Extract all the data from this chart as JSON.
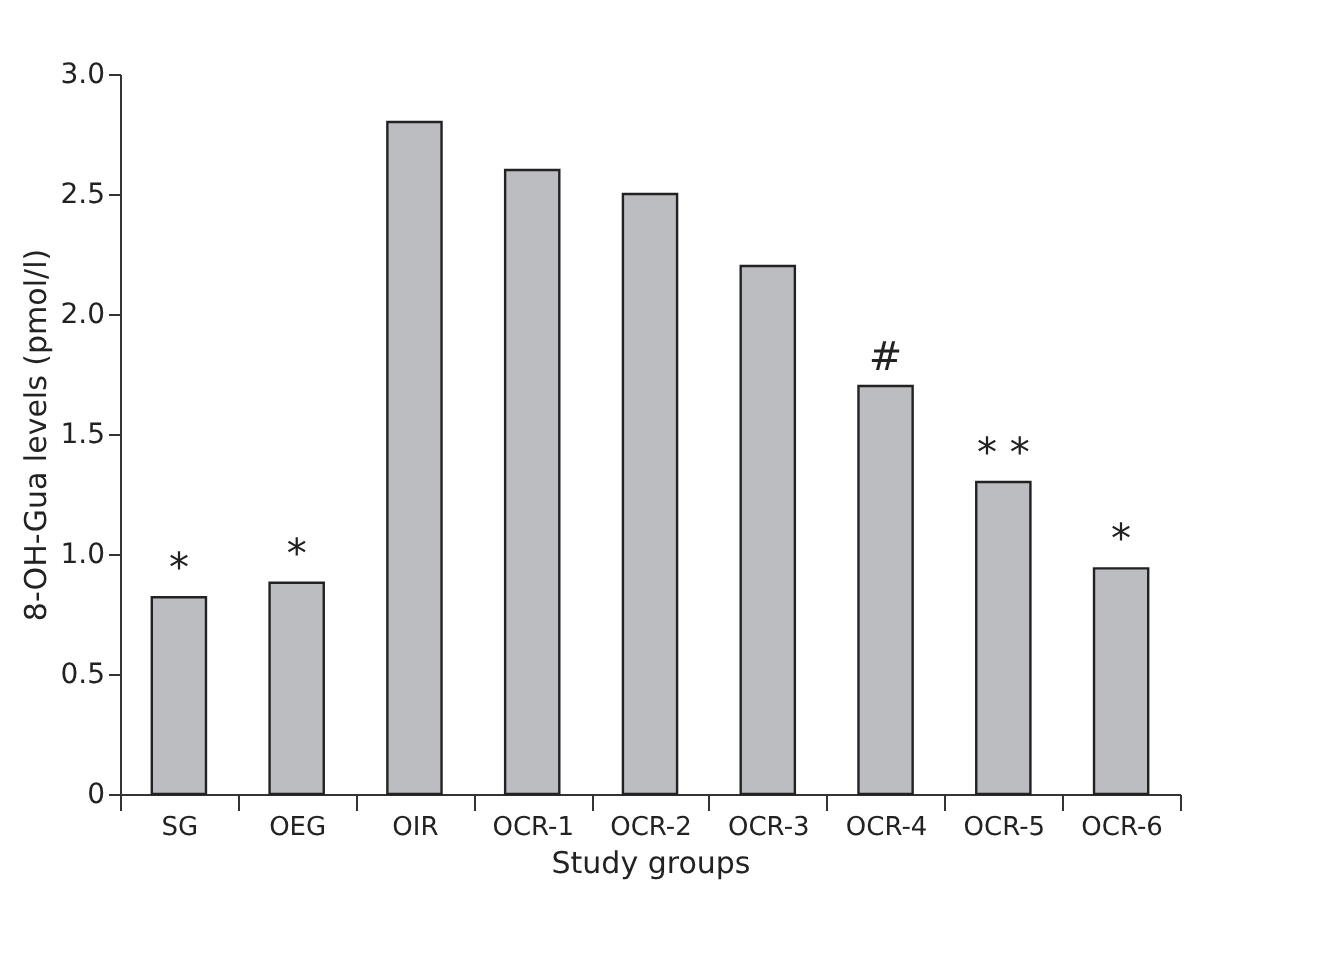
{
  "chart_data": {
    "type": "bar",
    "xlabel": "Study groups",
    "ylabel": "8-OH-Gua levels (pmol/l)",
    "categories": [
      "SG",
      "OEG",
      "OIR",
      "OCR-1",
      "OCR-2",
      "OCR-3",
      "OCR-4",
      "OCR-5",
      "OCR-6"
    ],
    "values": [
      0.82,
      0.88,
      2.8,
      2.6,
      2.5,
      2.2,
      1.7,
      1.3,
      0.94
    ],
    "color": "#bcbdc1",
    "ylim": [
      0,
      3.0
    ],
    "yticks": [
      0,
      0.5,
      {
        "value": 1.0,
        "label": "1.0"
      },
      1.5,
      {
        "value": 2.0,
        "label": "2.0"
      },
      2.5,
      {
        "value": 3.0,
        "label": "3.0"
      }
    ],
    "grid": false,
    "annotations": [
      {
        "text": "*",
        "x": "SG",
        "y": 0.82
      },
      {
        "text": "*",
        "x": "OEG",
        "y": 0.88
      },
      {
        "text": "#",
        "x": "OCR-4",
        "y": 1.7
      },
      {
        "text": "* *",
        "x": "OCR-5",
        "y": 1.3
      },
      {
        "text": "*",
        "x": "OCR-6",
        "y": 0.94
      }
    ]
  }
}
